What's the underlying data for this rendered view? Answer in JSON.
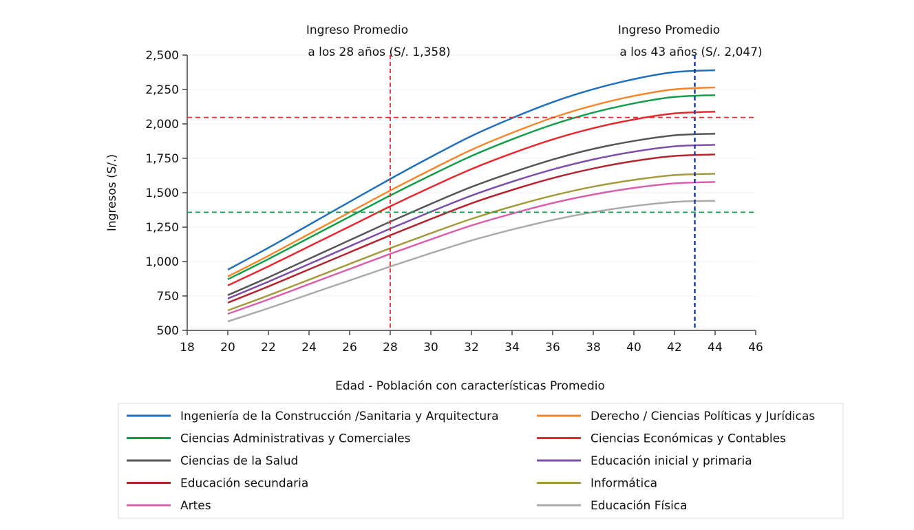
{
  "chart_data": {
    "type": "line",
    "xlabel": "Edad - Población con características Promedio",
    "ylabel": "Ingresos (S/.)",
    "xlim": [
      18,
      46
    ],
    "ylim": [
      500,
      2500
    ],
    "xticks": [
      "18",
      "20",
      "22",
      "24",
      "26",
      "28",
      "30",
      "32",
      "34",
      "36",
      "38",
      "40",
      "42",
      "44",
      "46"
    ],
    "yticks": [
      "500",
      "750",
      "1,000",
      "1,250",
      "1,500",
      "1,750",
      "2,000",
      "2,250",
      "2,500"
    ],
    "grid": "horizontal, faint",
    "legend_position": "bottom",
    "x": [
      20,
      22,
      24,
      26,
      28,
      30,
      32,
      34,
      36,
      38,
      40,
      42,
      44
    ],
    "series": [
      {
        "name": "Ingeniería de la Construcción /Sanitaria y Arquitectura",
        "color": "#1f6fbf",
        "values": [
          941,
          1100,
          1267,
          1434,
          1600,
          1760,
          1912,
          2042,
          2158,
          2252,
          2325,
          2376,
          2390
        ]
      },
      {
        "name": "Derecho / Ciencias Políticas y Jurídicas",
        "color": "#f7862a",
        "values": [
          891,
          1042,
          1200,
          1358,
          1516,
          1667,
          1812,
          1935,
          2045,
          2134,
          2203,
          2251,
          2265
        ]
      },
      {
        "name": "Ciencias Administrativas y Comerciales",
        "color": "#109e48",
        "values": [
          871,
          1018,
          1172,
          1326,
          1480,
          1627,
          1767,
          1888,
          1995,
          2082,
          2149,
          2196,
          2209
        ]
      },
      {
        "name": "Ciencias Económicas y Contables",
        "color": "#e8282e",
        "values": [
          826,
          965,
          1110,
          1255,
          1401,
          1540,
          1672,
          1786,
          1887,
          1969,
          2032,
          2076,
          2089
        ]
      },
      {
        "name": "Ciencias de la Salud",
        "color": "#555555",
        "values": [
          756,
          885,
          1020,
          1155,
          1290,
          1419,
          1542,
          1647,
          1741,
          1818,
          1876,
          1917,
          1929
        ]
      },
      {
        "name": "Educación inicial y primaria",
        "color": "#7d4fa8",
        "values": [
          731,
          854,
          982,
          1111,
          1239,
          1362,
          1479,
          1580,
          1669,
          1742,
          1798,
          1837,
          1848
        ]
      },
      {
        "name": "Educación secundaria",
        "color": "#b5242e",
        "values": [
          701,
          819,
          943,
          1067,
          1191,
          1309,
          1423,
          1520,
          1606,
          1676,
          1730,
          1767,
          1778
        ]
      },
      {
        "name": "Informática",
        "color": "#a39a3c",
        "values": [
          645,
          754,
          868,
          983,
          1097,
          1206,
          1310,
          1400,
          1479,
          1544,
          1593,
          1628,
          1638
        ]
      },
      {
        "name": "Artes",
        "color": "#d95fae",
        "values": [
          620,
          725,
          836,
          946,
          1056,
          1161,
          1262,
          1348,
          1425,
          1487,
          1535,
          1568,
          1578
        ]
      },
      {
        "name": "Educación Física",
        "color": "#aaaaaa",
        "values": [
          565,
          661,
          762,
          863,
          964,
          1061,
          1153,
          1232,
          1302,
          1359,
          1403,
          1433,
          1442
        ]
      }
    ],
    "reference_lines": [
      {
        "orientation": "vertical",
        "x": 28,
        "color": "#e8282e"
      },
      {
        "orientation": "vertical",
        "x": 43,
        "color": "#1f3f99"
      },
      {
        "orientation": "horizontal",
        "y": 2047,
        "color": "#e8282e"
      },
      {
        "orientation": "horizontal",
        "y": 1358,
        "color": "#109e48"
      }
    ],
    "annotations": [
      {
        "line1": "Ingreso Promedio",
        "line2": "a los 28 años (S/. 1,358)"
      },
      {
        "line1": "Ingreso Promedio",
        "line2": "a los 43 años (S/. 2,047)"
      }
    ]
  }
}
